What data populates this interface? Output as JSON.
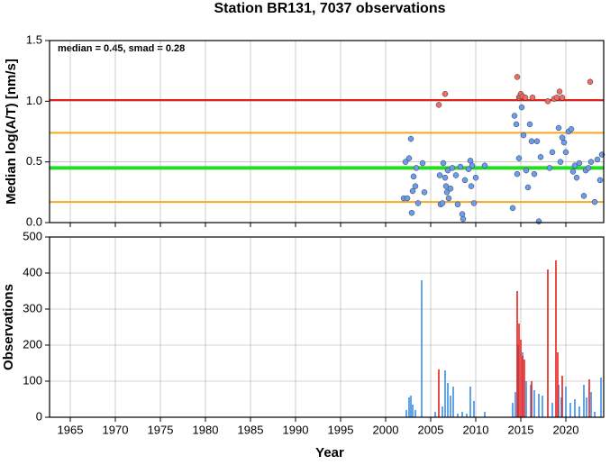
{
  "chart_data": [
    {
      "type": "scatter",
      "title": "Station BR131, 7037 observations",
      "ylabel": "Median log(A/T) [nm/s]",
      "annotation": "median = 0.45, smad = 0.28",
      "xlim": [
        1962.7,
        2024.2
      ],
      "xticks": [
        1965,
        1970,
        1975,
        1980,
        1985,
        1990,
        1995,
        2000,
        2005,
        2010,
        2015,
        2020
      ],
      "ylim": [
        0,
        1.5
      ],
      "yticks": [
        {
          "value": 0,
          "label": "0.0"
        },
        {
          "value": 0.5,
          "label": "0.5"
        },
        {
          "value": 1,
          "label": "1.0"
        },
        {
          "value": 1.5,
          "label": "1.5"
        }
      ],
      "grid": true,
      "reference_lines": [
        {
          "value": 1.01,
          "color": "#e8201c"
        },
        {
          "value": 0.74,
          "color": "#f5a623"
        },
        {
          "value": 0.45,
          "color": "#22dd22"
        },
        {
          "value": 0.17,
          "color": "#f5a623"
        }
      ],
      "series": [
        {
          "color": "#6a9cf0",
          "x": [
            2002.0,
            2002.2,
            2002.4,
            2002.6,
            2002.8,
            2002.9,
            2003.0,
            2003.1,
            2003.3,
            2003.4,
            2003.6,
            2004.1,
            2004.3,
            2006.0,
            2006.1,
            2006.3,
            2006.4,
            2006.6,
            2006.7,
            2006.8,
            2006.9,
            2007.0,
            2007.2,
            2007.4,
            2007.8,
            2008.0,
            2008.3,
            2008.5,
            2008.6,
            2008.8,
            2009.2,
            2009.4,
            2009.5,
            2009.6,
            2009.8,
            2010.0,
            2011.0,
            2014.1,
            2014.3,
            2014.5,
            2014.6,
            2014.8,
            2015.1,
            2015.3,
            2015.6,
            2015.8,
            2016.0,
            2016.2,
            2016.5,
            2016.8,
            2017.0,
            2017.2,
            2018.2,
            2018.5,
            2019.2,
            2019.4,
            2019.6,
            2019.8,
            2020.0,
            2020.3,
            2020.6,
            2020.8,
            2021.0,
            2021.2,
            2021.5,
            2022.0,
            2022.2,
            2022.5,
            2022.8,
            2023.2,
            2023.5,
            2023.8,
            2024.0
          ],
          "values": [
            0.2,
            0.5,
            0.2,
            0.53,
            0.69,
            0.08,
            0.26,
            0.38,
            0.3,
            0.45,
            0.16,
            0.49,
            0.25,
            0.39,
            0.15,
            0.16,
            0.49,
            0.37,
            0.3,
            0.25,
            0.43,
            0.2,
            0.28,
            0.45,
            0.39,
            0.15,
            0.46,
            0.07,
            0.03,
            0.35,
            0.44,
            0.51,
            0.3,
            0.47,
            0.16,
            0.37,
            0.47,
            0.12,
            0.88,
            0.81,
            0.4,
            0.53,
            0.95,
            0.72,
            0.43,
            0.29,
            0.81,
            0.67,
            0.4,
            0.67,
            0.01,
            0.54,
            0.45,
            0.58,
            0.78,
            0.5,
            0.7,
            0.66,
            0.58,
            0.75,
            0.77,
            0.42,
            0.47,
            0.37,
            0.49,
            0.22,
            0.43,
            0.45,
            0.5,
            0.17,
            0.52,
            0.35,
            0.56
          ]
        },
        {
          "color": "#f26b63",
          "x": [
            2005.9,
            2006.6,
            2014.6,
            2014.8,
            2014.9,
            2015.0,
            2015.2,
            2015.5,
            2016.3,
            2018.0,
            2018.7,
            2019.0,
            2019.3,
            2019.6,
            2022.7
          ],
          "values": [
            0.97,
            1.06,
            1.2,
            1.03,
            1.04,
            1.06,
            1.04,
            1.03,
            1.03,
            1.0,
            1.02,
            1.03,
            1.08,
            1.03,
            1.16
          ]
        }
      ]
    },
    {
      "type": "bar",
      "xlabel": "Year",
      "ylabel": "Observations",
      "xlim": [
        1962.7,
        2024.2
      ],
      "xticks": [
        1965,
        1970,
        1975,
        1980,
        1985,
        1990,
        1995,
        2000,
        2005,
        2010,
        2015,
        2020
      ],
      "ylim": [
        0,
        500
      ],
      "yticks": [
        0,
        100,
        200,
        300,
        400,
        500
      ],
      "grid": true,
      "series": [
        {
          "color": "#3a8ee6",
          "x": [
            2002.3,
            2002.6,
            2002.8,
            2003.0,
            2003.3,
            2004.0,
            2005.5,
            2006.3,
            2006.6,
            2006.9,
            2007.2,
            2007.5,
            2008.0,
            2008.5,
            2009.0,
            2009.4,
            2009.8,
            2011.0,
            2014.1,
            2014.4,
            2014.7,
            2015.2,
            2015.6,
            2016.1,
            2016.5,
            2017.0,
            2017.4,
            2018.5,
            2019.2,
            2019.5,
            2020.0,
            2020.5,
            2021.0,
            2021.5,
            2022.0,
            2022.3,
            2022.8,
            2023.2,
            2023.9
          ],
          "values": [
            20,
            55,
            60,
            35,
            20,
            380,
            15,
            30,
            130,
            95,
            60,
            85,
            10,
            15,
            10,
            85,
            45,
            15,
            40,
            70,
            200,
            180,
            100,
            90,
            75,
            65,
            60,
            40,
            90,
            55,
            85,
            40,
            50,
            30,
            90,
            55,
            70,
            15,
            110
          ]
        },
        {
          "color": "#e8201c",
          "x": [
            2005.9,
            2014.6,
            2014.8,
            2015.0,
            2015.2,
            2015.4,
            2016.2,
            2018.0,
            2018.9,
            2019.1,
            2019.6,
            2022.6
          ],
          "values": [
            133,
            350,
            260,
            215,
            170,
            160,
            100,
            410,
            435,
            180,
            115,
            105
          ]
        }
      ]
    }
  ]
}
